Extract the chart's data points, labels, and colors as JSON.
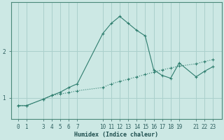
{
  "title": "",
  "xlabel": "Humidex (Indice chaleur)",
  "background_color": "#cce8e4",
  "grid_color": "#aad0cc",
  "line_color": "#2e7d6e",
  "x_ticks": [
    0,
    1,
    3,
    4,
    5,
    6,
    7,
    10,
    11,
    12,
    13,
    14,
    15,
    16,
    17,
    18,
    19,
    21,
    22,
    23
  ],
  "series1_x": [
    0,
    1,
    3,
    4,
    5,
    6,
    7,
    10,
    11,
    12,
    13,
    14,
    15,
    16,
    17,
    18,
    19,
    21,
    22,
    23
  ],
  "series1_y": [
    0.83,
    0.83,
    0.97,
    1.05,
    1.08,
    1.11,
    1.15,
    1.22,
    1.3,
    1.35,
    1.4,
    1.45,
    1.5,
    1.55,
    1.6,
    1.64,
    1.68,
    1.73,
    1.78,
    1.82
  ],
  "series2_x": [
    0,
    1,
    3,
    4,
    5,
    6,
    7,
    10,
    11,
    12,
    13,
    14,
    15,
    16,
    17,
    18,
    19,
    21,
    22,
    23
  ],
  "series2_y": [
    0.83,
    0.83,
    0.97,
    1.05,
    1.12,
    1.22,
    1.3,
    2.38,
    2.6,
    2.75,
    2.6,
    2.45,
    2.33,
    1.6,
    1.48,
    1.42,
    1.75,
    1.45,
    1.57,
    1.67
  ],
  "ylim": [
    0.55,
    3.05
  ],
  "yticks": [
    1,
    2
  ],
  "figsize": [
    3.2,
    2.0
  ],
  "dpi": 100
}
